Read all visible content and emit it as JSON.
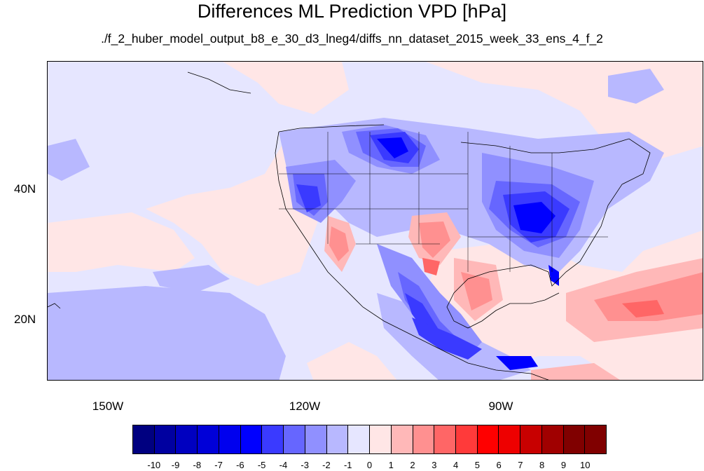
{
  "title": "Differences ML Prediction VPD [hPa]",
  "subtitle": "./f_2_huber_model_output_b8_e_30_d3_lneg4/diffs_nn_dataset_2015_week_33_ens_4_f_2",
  "map": {
    "projection": "cylindrical equidistant",
    "lon_range": [
      -159.5,
      -59.5
    ],
    "lat_range": [
      10.6,
      59.6
    ],
    "lon_ticks": [
      {
        "label": "150W",
        "value": -150
      },
      {
        "label": "120W",
        "value": -120
      },
      {
        "label": "90W",
        "value": -90
      }
    ],
    "lat_ticks": [
      {
        "label": "40N",
        "value": 40
      },
      {
        "label": "20N",
        "value": 20
      }
    ],
    "features": [
      "coastlines",
      "US state borders",
      "country borders",
      "filled contours"
    ]
  },
  "colorbar": {
    "labels": [
      "-10",
      "-9",
      "-8",
      "-7",
      "-6",
      "-5",
      "-4",
      "-3",
      "-2",
      "-1",
      "0",
      "1",
      "2",
      "3",
      "4",
      "5",
      "6",
      "7",
      "8",
      "9",
      "10"
    ],
    "colors": [
      "#000080",
      "#0000a0",
      "#0000c0",
      "#0000d8",
      "#0000ee",
      "#0000ff",
      "#3a3aff",
      "#6666ff",
      "#9090ff",
      "#b8b8ff",
      "#e6e6ff",
      "#ffe6e6",
      "#ffb8b8",
      "#ff9090",
      "#ff6666",
      "#ff3a3a",
      "#ff0000",
      "#ee0000",
      "#c80000",
      "#a00000",
      "#800000"
    ]
  }
}
